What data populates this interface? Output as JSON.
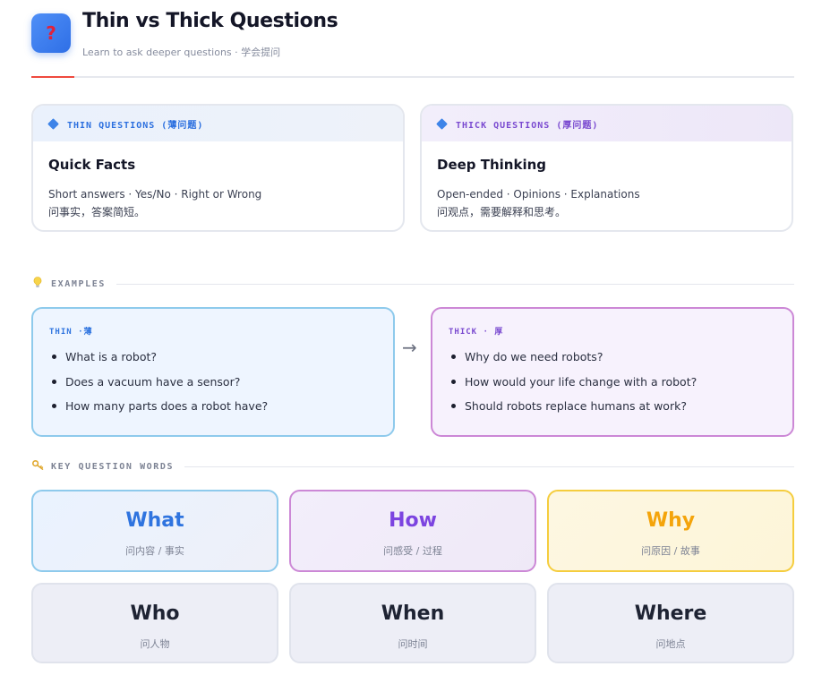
{
  "header": {
    "icon": "question-mark-icon",
    "icon_glyph": "?",
    "title": "Thin vs Thick Questions",
    "subtitle": "Learn to ask deeper questions · 学会提问",
    "accent_color": "#ef4a3e"
  },
  "overview": {
    "thin": {
      "tag": "THIN QUESTIONS (薄问题)",
      "title": "Quick Facts",
      "desc_en": "Short answers · Yes/No · Right or Wrong",
      "desc_cn": "问事实，答案简短。",
      "color": "#2b6fdf"
    },
    "thick": {
      "tag": "THICK QUESTIONS (厚问题)",
      "title": "Deep Thinking",
      "desc_en": "Open-ended · Opinions · Explanations",
      "desc_cn": "问观点，需要解释和思考。",
      "color": "#7a4ad0"
    }
  },
  "examples": {
    "section_label": "EXAMPLES",
    "section_icon": "lightbulb-icon",
    "arrow": "→",
    "thin": {
      "tag": "THIN ·薄",
      "items": [
        "What is a robot?",
        "Does a vacuum have a sensor?",
        "How many parts does a robot have?"
      ]
    },
    "thick": {
      "tag": "THICK · 厚",
      "items": [
        "Why do we need robots?",
        "How would your life change with a robot?",
        "Should robots replace humans at work?"
      ]
    }
  },
  "key_words": {
    "section_label": "KEY QUESTION WORDS",
    "section_icon": "key-icon",
    "items": [
      {
        "word": "What",
        "cn": "问内容 / 事实",
        "color": "#2f74df"
      },
      {
        "word": "How",
        "cn": "问感受 / 过程",
        "color": "#7c44e0"
      },
      {
        "word": "Why",
        "cn": "问原因 / 故事",
        "color": "#f4a40b"
      },
      {
        "word": "Who",
        "cn": "问人物",
        "color": "#1e2333"
      },
      {
        "word": "When",
        "cn": "问时间",
        "color": "#1e2333"
      },
      {
        "word": "Where",
        "cn": "问地点",
        "color": "#1e2333"
      }
    ]
  }
}
